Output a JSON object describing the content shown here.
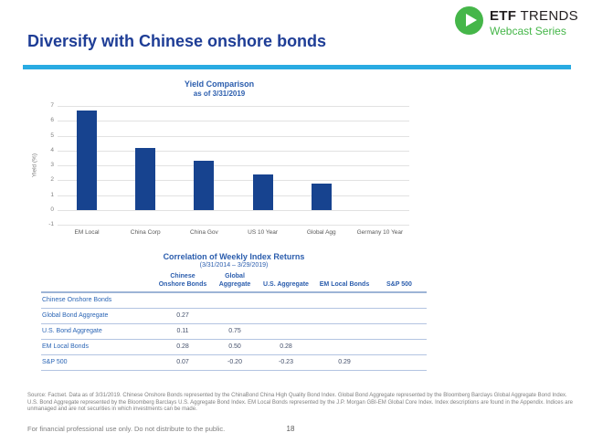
{
  "logo": {
    "brand_bold": "ETF",
    "brand_regular": "TRENDS",
    "subtitle": "Webcast Series",
    "brand_green": "#45b649"
  },
  "slide": {
    "title": "Diversify with Chinese onshore bonds",
    "title_color": "#1e3d96",
    "accent_color": "#29abe2"
  },
  "chart_data": {
    "type": "bar",
    "title": "Yield Comparison",
    "subtitle": "as of 3/31/2019",
    "categories": [
      "EM Local",
      "China Corp",
      "China Gov",
      "US 10 Year",
      "Global Agg",
      "Germany 10 Year"
    ],
    "values": [
      6.7,
      4.2,
      3.3,
      2.4,
      1.75,
      0
    ],
    "xlabel": "",
    "ylabel": "Yield (%)",
    "ylim": [
      -1,
      7
    ],
    "yticks": [
      7,
      6,
      5,
      4,
      3,
      2,
      1,
      0,
      -1
    ],
    "grid": true,
    "legend": "none",
    "bar_color": "#17438f"
  },
  "table": {
    "title": "Correlation of Weekly Index Returns",
    "subtitle": "(3/31/2014 – 3/29/2019)",
    "columns": [
      "Chinese\nOnshore Bonds",
      "Global\nAggregate",
      "U.S. Aggregate",
      "EM Local Bonds",
      "S&P 500"
    ],
    "rows": [
      {
        "label": "Chinese Onshore Bonds",
        "values": [
          "",
          "",
          "",
          "",
          ""
        ]
      },
      {
        "label": "Global Bond Aggregate",
        "values": [
          "0.27",
          "",
          "",
          "",
          ""
        ]
      },
      {
        "label": "U.S. Bond Aggregate",
        "values": [
          "0.11",
          "0.75",
          "",
          "",
          ""
        ]
      },
      {
        "label": "EM Local Bonds",
        "values": [
          "0.28",
          "0.50",
          "0.28",
          "",
          ""
        ]
      },
      {
        "label": "S&P 500",
        "values": [
          "0.07",
          "-0.20",
          "-0.23",
          "0.29",
          ""
        ]
      }
    ]
  },
  "footnotes": {
    "source": "Source: Factset. Data as of 3/31/2019. Chinese Onshore Bonds represented by the ChinaBond China High Quality Bond Index. Global Bond Aggregate represented by the Bloomberg Barclays Global Aggregate Bond Index. U.S. Bond Aggregate represented by the Bloomberg Barclays U.S. Aggregate Bond Index. EM Local Bonds represented by the J.P. Morgan GBI-EM Global Core Index. Index descriptions are found in the Appendix. Indices are unmanaged and are not securities in which investments can be made.",
    "disclaimer": "For financial professional use only. Do not distribute to the public.",
    "page_number": "18"
  }
}
